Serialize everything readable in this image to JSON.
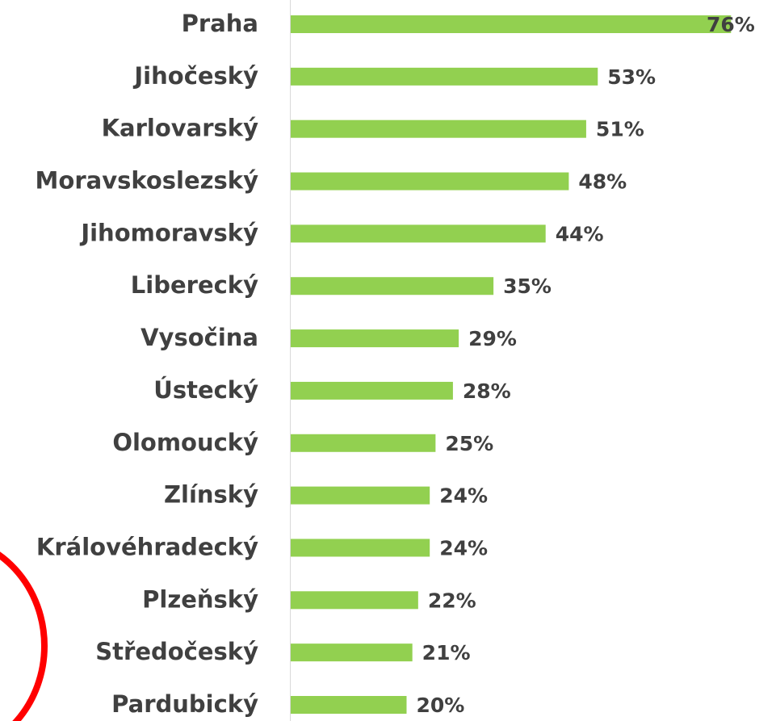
{
  "chart_data": {
    "type": "bar",
    "orientation": "horizontal",
    "categories": [
      "Praha",
      "Jihočeský",
      "Karlovarský",
      "Moravskoslezský",
      "Jihomoravský",
      "Liberecký",
      "Vysočina",
      "Ústecký",
      "Olomoucký",
      "Zlínský",
      "Královéhradecký",
      "Plzeňský",
      "Středočeský",
      "Pardubický"
    ],
    "values": [
      76,
      53,
      51,
      48,
      44,
      35,
      29,
      28,
      25,
      24,
      24,
      22,
      21,
      20
    ],
    "value_labels": [
      "76%",
      "53%",
      "51%",
      "48%",
      "44%",
      "35%",
      "29%",
      "28%",
      "25%",
      "24%",
      "24%",
      "22%",
      "21%",
      "20%"
    ],
    "color": "#92d050",
    "xlim": [
      0,
      80
    ]
  }
}
